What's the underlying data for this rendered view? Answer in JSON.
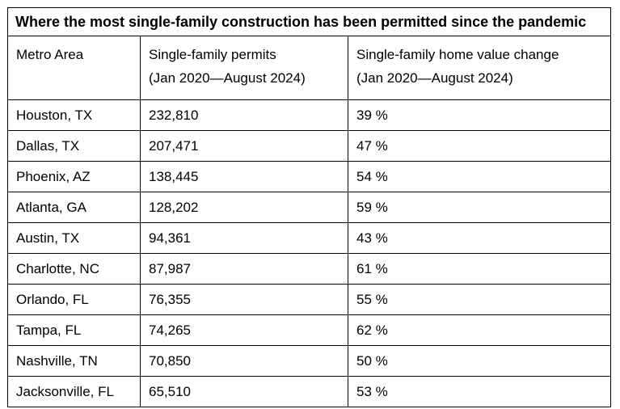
{
  "chart_data": {
    "type": "table",
    "title": "Where the most single-family construction has been permitted since the pandemic",
    "columns": [
      {
        "key": "metro",
        "lines": [
          "Metro Area"
        ]
      },
      {
        "key": "permits",
        "lines": [
          "Single-family permits",
          "(Jan 2020—August 2024)"
        ]
      },
      {
        "key": "change",
        "lines": [
          "Single-family home value change",
          "(Jan 2020—August 2024)"
        ]
      }
    ],
    "rows": [
      {
        "metro": "Houston, TX",
        "permits": "232,810",
        "change": "39 %"
      },
      {
        "metro": "Dallas, TX",
        "permits": "207,471",
        "change": "47 %"
      },
      {
        "metro": "Phoenix, AZ",
        "permits": "138,445",
        "change": "54 %"
      },
      {
        "metro": "Atlanta, GA",
        "permits": "128,202",
        "change": "59 %"
      },
      {
        "metro": "Austin, TX",
        "permits": "94,361",
        "change": "43 %"
      },
      {
        "metro": "Charlotte, NC",
        "permits": "87,987",
        "change": "61 %"
      },
      {
        "metro": "Orlando, FL",
        "permits": "76,355",
        "change": "55 %"
      },
      {
        "metro": "Tampa, FL",
        "permits": "74,265",
        "change": "62 %"
      },
      {
        "metro": "Nashville, TN",
        "permits": "70,850",
        "change": "50 %"
      },
      {
        "metro": "Jacksonville, FL",
        "permits": "65,510",
        "change": "53 %"
      }
    ]
  }
}
